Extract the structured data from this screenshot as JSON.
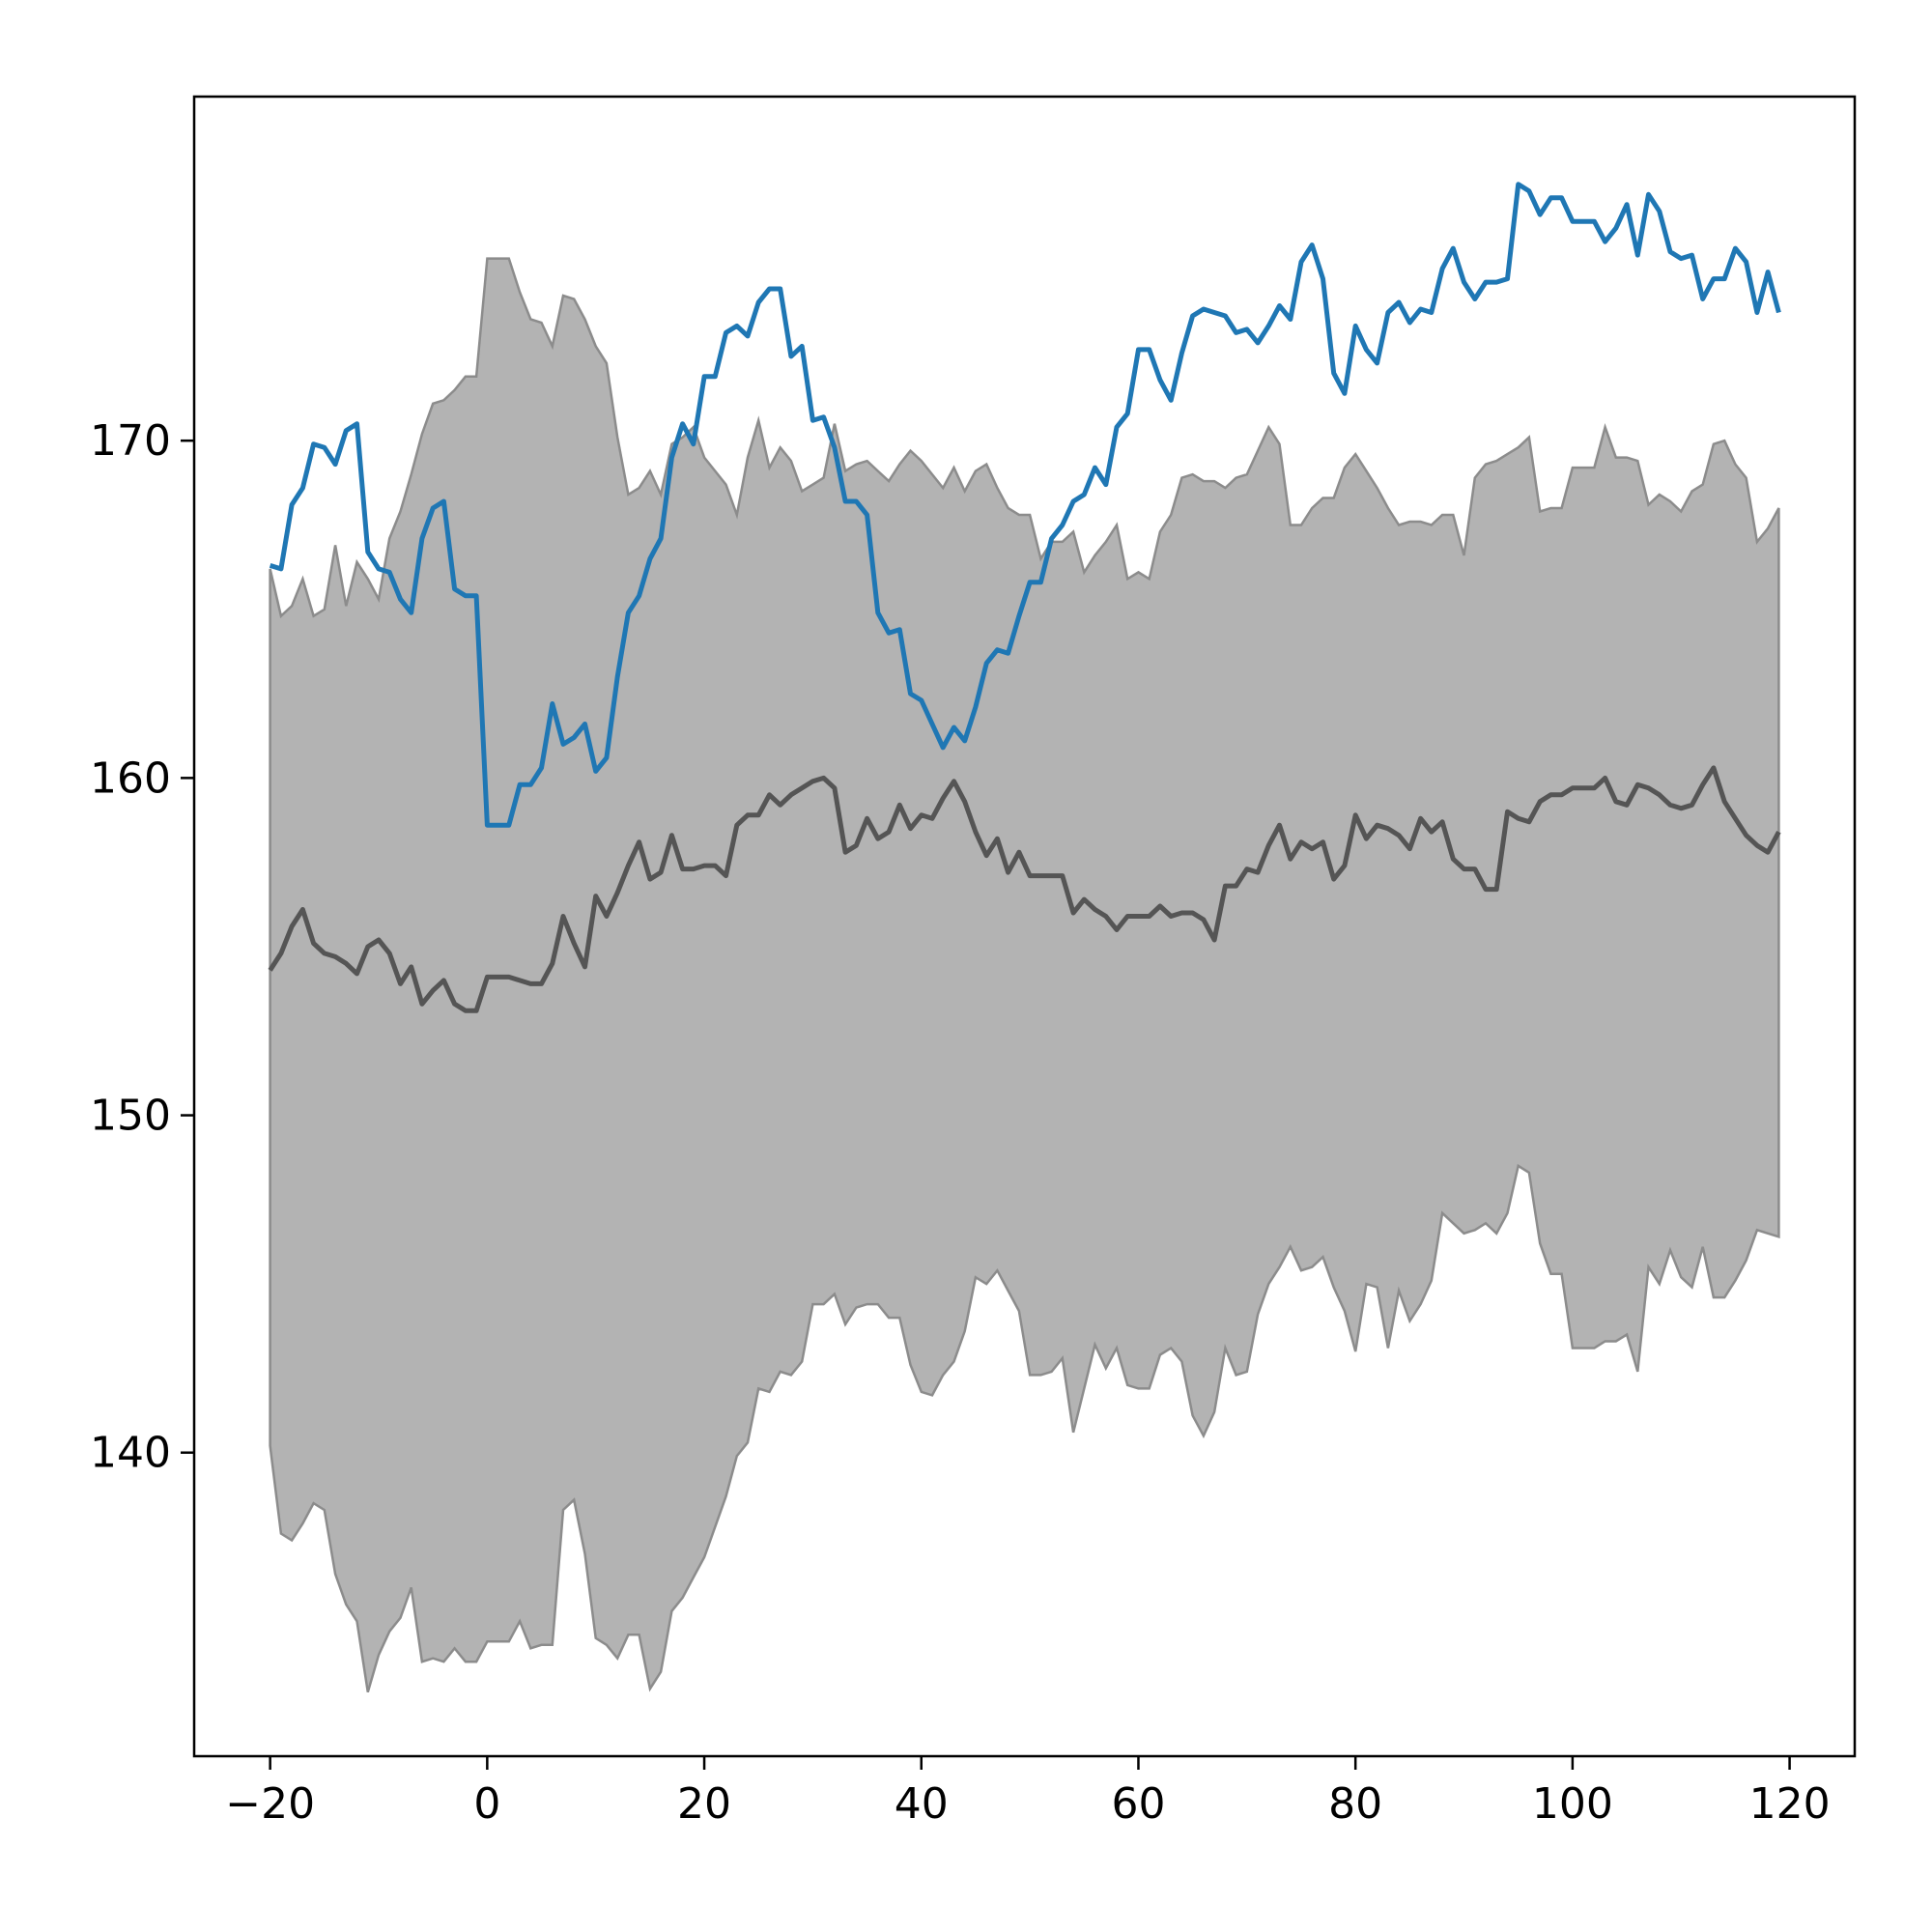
{
  "chart_data": {
    "type": "line",
    "title": "",
    "xlabel": "",
    "ylabel": "",
    "xlim": [
      -27,
      126
    ],
    "ylim": [
      131,
      180.2
    ],
    "xticks": [
      -20,
      0,
      20,
      40,
      60,
      80,
      100,
      120
    ],
    "yticks": [
      140,
      150,
      160,
      170
    ],
    "xtick_labels": [
      "−20",
      "0",
      "20",
      "40",
      "60",
      "80",
      "100",
      "120"
    ],
    "ytick_labels": [
      "140",
      "150",
      "160",
      "170"
    ],
    "grid": false,
    "legend": "none",
    "colors": {
      "observed": "#1f77b4",
      "mean": "#555555",
      "band_fill": "#b3b3b3",
      "band_edge": "#8c8c8c"
    },
    "band": {
      "x": [
        -20,
        -19,
        -18,
        -17,
        -16,
        -15,
        -14,
        -13,
        -12,
        -11,
        -10,
        -9,
        -8,
        -7,
        -6,
        -5,
        -4,
        -3,
        -2,
        -1,
        0,
        1,
        2,
        3,
        4,
        5,
        6,
        7,
        8,
        9,
        10,
        11,
        12,
        13,
        14,
        15,
        16,
        17,
        18,
        19,
        20,
        21,
        22,
        23,
        24,
        25,
        26,
        27,
        28,
        29,
        30,
        31,
        32,
        33,
        34,
        35,
        36,
        37,
        38,
        39,
        40,
        41,
        42,
        43,
        44,
        45,
        46,
        47,
        48,
        49,
        50,
        51,
        52,
        53,
        54,
        55,
        56,
        57,
        58,
        59,
        60,
        61,
        62,
        63,
        64,
        65,
        66,
        67,
        68,
        69,
        70,
        71,
        72,
        73,
        74,
        75,
        76,
        77,
        78,
        79,
        80,
        81,
        82,
        83,
        84,
        85,
        86,
        87,
        88,
        89,
        90,
        91,
        92,
        93,
        94,
        95,
        96,
        97,
        98,
        99,
        100,
        101,
        102,
        103,
        104,
        105,
        106,
        107,
        108,
        109,
        110,
        111,
        112,
        113,
        114,
        115,
        116,
        117,
        118,
        119
      ],
      "upper": [
        166.2,
        164.8,
        165.1,
        165.9,
        164.8,
        165.0,
        166.9,
        165.1,
        166.4,
        165.9,
        165.3,
        167.1,
        167.9,
        169.0,
        170.2,
        171.1,
        171.2,
        171.5,
        171.9,
        171.9,
        175.4,
        175.4,
        175.4,
        174.4,
        173.6,
        173.5,
        172.8,
        174.3,
        174.2,
        173.6,
        172.8,
        172.3,
        170.1,
        168.4,
        168.6,
        169.1,
        168.4,
        169.9,
        170.1,
        170.4,
        169.5,
        169.1,
        168.7,
        167.8,
        169.5,
        170.6,
        169.2,
        169.8,
        169.4,
        168.5,
        168.7,
        168.9,
        170.5,
        169.1,
        169.3,
        169.4,
        169.1,
        168.8,
        169.3,
        169.7,
        169.4,
        169.0,
        168.6,
        169.2,
        168.5,
        169.1,
        169.3,
        168.6,
        168.0,
        167.8,
        167.8,
        166.5,
        167.0,
        167.0,
        167.3,
        166.1,
        166.6,
        167.0,
        167.5,
        165.9,
        166.1,
        165.9,
        167.3,
        167.8,
        168.9,
        169.0,
        168.8,
        168.8,
        168.6,
        168.9,
        169.0,
        169.7,
        170.4,
        169.9,
        167.5,
        167.5,
        168.0,
        168.3,
        168.3,
        169.2,
        169.6,
        169.1,
        168.6,
        168.0,
        167.5,
        167.6,
        167.6,
        167.5,
        167.8,
        167.8,
        166.6,
        168.9,
        169.3,
        169.4,
        169.6,
        169.8,
        170.1,
        167.9,
        168.0,
        168.0,
        169.2,
        169.2,
        169.2,
        170.4,
        169.5,
        169.5,
        169.4,
        168.1,
        168.4,
        168.2,
        167.9,
        168.5,
        168.7,
        169.9,
        170.0,
        169.3,
        168.9,
        167.0,
        167.4,
        168.0
      ],
      "lower": [
        140.2,
        137.6,
        137.4,
        137.9,
        138.5,
        138.3,
        136.4,
        135.5,
        135.0,
        132.9,
        134.0,
        134.7,
        135.1,
        136.0,
        133.8,
        133.9,
        133.8,
        134.2,
        133.8,
        133.8,
        134.4,
        134.4,
        134.4,
        135.0,
        134.2,
        134.3,
        134.3,
        138.3,
        138.6,
        137.0,
        134.5,
        134.3,
        133.9,
        134.6,
        134.6,
        133.0,
        133.5,
        135.3,
        135.7,
        136.3,
        136.9,
        137.8,
        138.7,
        139.9,
        140.3,
        141.9,
        141.8,
        142.4,
        142.3,
        142.7,
        144.4,
        144.4,
        144.7,
        143.8,
        144.3,
        144.4,
        144.4,
        144.0,
        144.0,
        142.6,
        141.8,
        141.7,
        142.3,
        142.7,
        143.6,
        145.2,
        145.0,
        145.4,
        144.8,
        144.2,
        142.3,
        142.3,
        142.4,
        142.8,
        140.6,
        141.9,
        143.2,
        142.5,
        143.1,
        142.0,
        141.9,
        141.9,
        142.9,
        143.1,
        142.7,
        141.1,
        140.5,
        141.2,
        143.1,
        142.3,
        142.4,
        144.1,
        145.0,
        145.5,
        146.1,
        145.4,
        145.5,
        145.8,
        144.9,
        144.2,
        143.0,
        145.0,
        144.9,
        143.1,
        144.8,
        143.9,
        144.4,
        145.1,
        147.1,
        146.8,
        146.5,
        146.6,
        146.8,
        146.5,
        147.1,
        148.5,
        148.3,
        146.2,
        145.3,
        145.3,
        143.1,
        143.1,
        143.1,
        143.3,
        143.3,
        143.5,
        142.4,
        145.5,
        145.0,
        146.0,
        145.2,
        144.9,
        146.1,
        144.6,
        144.6,
        145.1,
        145.7,
        146.6,
        146.5,
        146.4
      ]
    },
    "series": [
      {
        "x": [
          -20,
          -19,
          -18,
          -17,
          -16,
          -15,
          -14,
          -13,
          -12,
          -11,
          -10,
          -9,
          -8,
          -7,
          -6,
          -5,
          -4,
          -3,
          -2,
          -1,
          0,
          1,
          2,
          3,
          4,
          5,
          6,
          7,
          8,
          9,
          10,
          11,
          12,
          13,
          14,
          15,
          16,
          17,
          18,
          19,
          20,
          21,
          22,
          23,
          24,
          25,
          26,
          27,
          28,
          29,
          30,
          31,
          32,
          33,
          34,
          35,
          36,
          37,
          38,
          39,
          40,
          41,
          42,
          43,
          44,
          45,
          46,
          47,
          48,
          49,
          50,
          51,
          52,
          53,
          54,
          55,
          56,
          57,
          58,
          59,
          60,
          61,
          62,
          63,
          64,
          65,
          66,
          67,
          68,
          69,
          70,
          71,
          72,
          73,
          74,
          75,
          76,
          77,
          78,
          79,
          80,
          81,
          82,
          83,
          84,
          85,
          86,
          87,
          88,
          89,
          90,
          91,
          92,
          93,
          94,
          95,
          96,
          97,
          98,
          99,
          100,
          101,
          102,
          103,
          104,
          105,
          106,
          107,
          108,
          109,
          110,
          111,
          112,
          113,
          114,
          115,
          116,
          117,
          118,
          119
        ],
        "values": [
          166.3,
          166.2,
          168.1,
          168.6,
          169.9,
          169.8,
          169.3,
          170.3,
          170.5,
          166.7,
          166.2,
          166.1,
          165.3,
          164.9,
          167.1,
          168.0,
          168.2,
          165.6,
          165.4,
          165.4,
          158.6,
          158.6,
          158.6,
          159.8,
          159.8,
          160.3,
          162.2,
          161.0,
          161.2,
          161.6,
          160.2,
          160.6,
          163.0,
          164.9,
          165.4,
          166.5,
          167.1,
          169.5,
          170.5,
          169.9,
          171.9,
          171.9,
          173.2,
          173.4,
          173.1,
          174.1,
          174.5,
          174.5,
          172.5,
          172.8,
          170.6,
          170.7,
          169.8,
          168.2,
          168.2,
          167.8,
          164.9,
          164.3,
          164.4,
          162.5,
          162.3,
          161.6,
          160.9,
          161.5,
          161.1,
          162.1,
          163.4,
          163.8,
          163.7,
          164.8,
          165.8,
          165.8,
          167.1,
          167.5,
          168.2,
          168.4,
          169.2,
          168.7,
          170.4,
          170.8,
          172.7,
          172.7,
          171.8,
          171.2,
          172.6,
          173.7,
          173.9,
          173.8,
          173.7,
          173.2,
          173.3,
          172.9,
          173.4,
          174.0,
          173.6,
          175.3,
          175.8,
          174.8,
          172.0,
          171.4,
          173.4,
          172.7,
          172.3,
          173.8,
          174.1,
          173.5,
          173.9,
          173.8,
          175.1,
          175.7,
          174.7,
          174.2,
          174.7,
          174.7,
          174.8,
          177.6,
          177.4,
          176.7,
          177.2,
          177.2,
          176.5,
          176.5,
          176.5,
          175.9,
          176.3,
          177.0,
          175.5,
          177.3,
          176.8,
          175.6,
          175.4,
          175.5,
          174.2,
          174.8,
          174.8,
          175.7,
          175.3,
          173.8,
          175.0,
          173.8
        ]
      },
      {
        "x": [
          -20,
          -19,
          -18,
          -17,
          -16,
          -15,
          -14,
          -13,
          -12,
          -11,
          -10,
          -9,
          -8,
          -7,
          -6,
          -5,
          -4,
          -3,
          -2,
          -1,
          0,
          1,
          2,
          3,
          4,
          5,
          6,
          7,
          8,
          9,
          10,
          11,
          12,
          13,
          14,
          15,
          16,
          17,
          18,
          19,
          20,
          21,
          22,
          23,
          24,
          25,
          26,
          27,
          28,
          29,
          30,
          31,
          32,
          33,
          34,
          35,
          36,
          37,
          38,
          39,
          40,
          41,
          42,
          43,
          44,
          45,
          46,
          47,
          48,
          49,
          50,
          51,
          52,
          53,
          54,
          55,
          56,
          57,
          58,
          59,
          60,
          61,
          62,
          63,
          64,
          65,
          66,
          67,
          68,
          69,
          70,
          71,
          72,
          73,
          74,
          75,
          76,
          77,
          78,
          79,
          80,
          81,
          82,
          83,
          84,
          85,
          86,
          87,
          88,
          89,
          90,
          91,
          92,
          93,
          94,
          95,
          96,
          97,
          98,
          99,
          100,
          101,
          102,
          103,
          104,
          105,
          106,
          107,
          108,
          109,
          110,
          111,
          112,
          113,
          114,
          115,
          116,
          117,
          118,
          119
        ],
        "values": [
          154.3,
          154.8,
          155.6,
          156.1,
          155.1,
          154.8,
          154.7,
          154.5,
          154.2,
          155.0,
          155.2,
          154.8,
          153.9,
          154.4,
          153.3,
          153.7,
          154.0,
          153.3,
          153.1,
          153.1,
          154.1,
          154.1,
          154.1,
          154.0,
          153.9,
          153.9,
          154.5,
          155.9,
          155.1,
          154.4,
          156.5,
          155.9,
          156.6,
          157.4,
          158.1,
          157.0,
          157.2,
          158.3,
          157.3,
          157.3,
          157.4,
          157.4,
          157.1,
          158.6,
          158.9,
          158.9,
          159.5,
          159.2,
          159.5,
          159.7,
          159.9,
          160.0,
          159.7,
          157.8,
          158.0,
          158.8,
          158.2,
          158.4,
          159.2,
          158.5,
          158.9,
          158.8,
          159.4,
          159.9,
          159.3,
          158.4,
          157.7,
          158.2,
          157.2,
          157.8,
          157.1,
          157.1,
          157.1,
          157.1,
          156.0,
          156.4,
          156.1,
          155.9,
          155.5,
          155.9,
          155.9,
          155.9,
          156.2,
          155.9,
          156.0,
          156.0,
          155.8,
          155.2,
          156.8,
          156.8,
          157.3,
          157.2,
          158.0,
          158.6,
          157.6,
          158.1,
          157.9,
          158.1,
          157.0,
          157.4,
          158.9,
          158.2,
          158.6,
          158.5,
          158.3,
          157.9,
          158.8,
          158.4,
          158.7,
          157.6,
          157.3,
          157.3,
          156.7,
          156.7,
          159.0,
          158.8,
          158.7,
          159.3,
          159.5,
          159.5,
          159.7,
          159.7,
          159.7,
          160.0,
          159.3,
          159.2,
          159.8,
          159.7,
          159.5,
          159.2,
          159.1,
          159.2,
          159.8,
          160.3,
          159.3,
          158.8,
          158.3,
          158.0,
          157.8,
          158.4
        ]
      }
    ]
  }
}
